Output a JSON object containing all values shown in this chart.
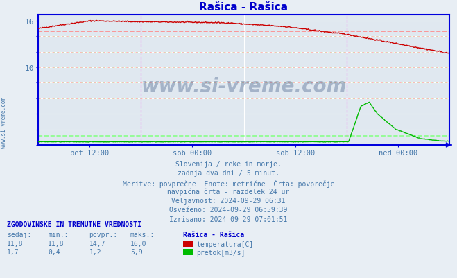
{
  "title": "Rašica - Rašica",
  "title_color": "#0000cc",
  "bg_color": "#e8eef4",
  "plot_bg_color": "#e0e8f0",
  "grid_color_white": "#ffffff",
  "grid_color_pink": "#ffaaaa",
  "grid_color_green": "#aaffaa",
  "x_tick_labels": [
    "pet 12:00",
    "sob 00:00",
    "sob 12:00",
    "ned 00:00"
  ],
  "x_tick_positions": [
    0.125,
    0.375,
    0.625,
    0.875
  ],
  "y_ticks_labeled": [
    10,
    16
  ],
  "y_ticks_all": [
    0,
    2,
    4,
    6,
    8,
    10,
    12,
    14,
    16
  ],
  "ylim": [
    0,
    16.8
  ],
  "temp_color": "#cc0000",
  "flow_color": "#00bb00",
  "avg_temp_color": "#ff8888",
  "avg_flow_color": "#88ff88",
  "vline_color": "#ff00ff",
  "axis_color": "#0000dd",
  "text_color": "#4477aa",
  "info_lines": [
    "Slovenija / reke in morje.",
    "zadnja dva dni / 5 minut.",
    "Meritve: povprečne  Enote: metrične  Črta: povprečje",
    "navpična črta - razdelek 24 ur",
    "Veljavnost: 2024-09-29 06:31",
    "Osveženo: 2024-09-29 06:59:39",
    "Izrisano: 2024-09-29 07:01:51"
  ],
  "table_header": "ZGODOVINSKE IN TRENUTNE VREDNOSTI",
  "table_cols": [
    "sedaj:",
    "min.:",
    "povpr.:",
    "maks.:"
  ],
  "table_row1": [
    "11,8",
    "11,8",
    "14,7",
    "16,0"
  ],
  "table_row2": [
    "1,7",
    "0,4",
    "1,2",
    "5,9"
  ],
  "legend_label1": "temperatura[C]",
  "legend_label2": "pretok[m3/s]",
  "station_name": "Rašica - Rašica",
  "temp_avg": 14.7,
  "flow_avg": 1.2,
  "n_points": 576
}
